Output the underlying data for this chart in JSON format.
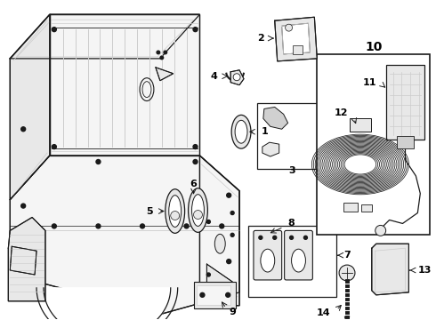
{
  "bg_color": "#ffffff",
  "line_color": "#1a1a1a",
  "light_gray": "#cccccc",
  "fill_light": "#f5f5f5",
  "fill_mid": "#e8e8e8",
  "fill_dark": "#d0d0d0"
}
